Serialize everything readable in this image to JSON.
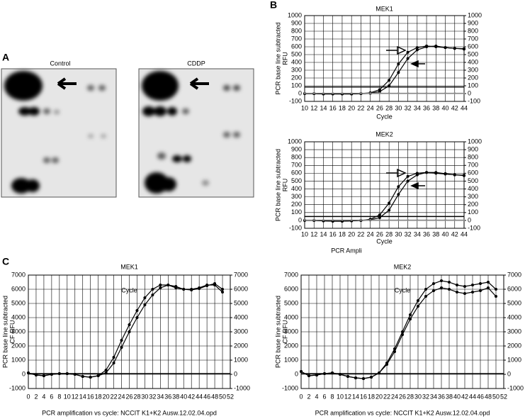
{
  "panel_labels": {
    "a": "A",
    "b": "B",
    "c": "C"
  },
  "blots": {
    "left_label": "Control",
    "right_label": "CDDP"
  },
  "caption_b": "PCR Ampli",
  "chart_data": [
    {
      "type": "line",
      "title": "MEK1",
      "xlabel": "Cycle",
      "ylabel": [
        "PCR base line subtracted",
        "RFU"
      ],
      "x": [
        10,
        12,
        14,
        16,
        18,
        20,
        22,
        24,
        26,
        28,
        30,
        32,
        34,
        36,
        38,
        40,
        42,
        44
      ],
      "xlim": [
        10,
        44
      ],
      "xticks": [
        10,
        12,
        14,
        16,
        18,
        20,
        22,
        24,
        26,
        28,
        30,
        32,
        34,
        36,
        38,
        40,
        42,
        44
      ],
      "ylim": [
        -100,
        1000
      ],
      "yticks": [
        -100,
        0,
        100,
        200,
        300,
        400,
        500,
        600,
        700,
        800,
        900,
        1000
      ],
      "y2lim": [
        -100,
        1000
      ],
      "y2ticks": [
        -100,
        0,
        100,
        200,
        300,
        400,
        500,
        600,
        700,
        800,
        900,
        1000
      ],
      "grid": true,
      "threshold": 85,
      "series": [
        {
          "color": "#000000",
          "values": [
            0,
            0,
            -5,
            -5,
            -5,
            -5,
            0,
            10,
            50,
            170,
            380,
            530,
            590,
            610,
            600,
            590,
            580,
            570
          ]
        },
        {
          "color": "#000000",
          "values": [
            0,
            0,
            -5,
            -5,
            -5,
            -5,
            0,
            5,
            25,
            100,
            270,
            450,
            560,
            600,
            610,
            590,
            580,
            575
          ]
        },
        {
          "color": "#888888",
          "values": [
            5,
            5,
            5,
            5,
            5,
            5,
            5,
            5,
            5,
            5,
            5,
            5,
            5,
            5,
            5,
            5,
            5,
            5
          ]
        }
      ]
    },
    {
      "type": "line",
      "title": "MEK2",
      "xlabel": "Cycle",
      "ylabel": [
        "PCR base line subtracted",
        "RFU"
      ],
      "x": [
        10,
        12,
        14,
        16,
        18,
        20,
        22,
        24,
        26,
        28,
        30,
        32,
        34,
        36,
        38,
        40,
        42,
        44
      ],
      "xlim": [
        10,
        44
      ],
      "xticks": [
        10,
        12,
        14,
        16,
        18,
        20,
        22,
        24,
        26,
        28,
        30,
        32,
        34,
        36,
        38,
        40,
        42,
        44
      ],
      "ylim": [
        -100,
        1000
      ],
      "yticks": [
        -100,
        0,
        100,
        200,
        300,
        400,
        500,
        600,
        700,
        800,
        900,
        1000
      ],
      "y2lim": [
        -100,
        1000
      ],
      "y2ticks": [
        -100,
        0,
        100,
        200,
        300,
        400,
        500,
        600,
        700,
        800,
        900,
        1000
      ],
      "grid": true,
      "threshold": 50,
      "series": [
        {
          "color": "#000000",
          "values": [
            0,
            0,
            -5,
            -10,
            -10,
            -5,
            0,
            15,
            70,
            220,
            430,
            560,
            600,
            610,
            600,
            590,
            580,
            570
          ]
        },
        {
          "color": "#000000",
          "values": [
            0,
            0,
            -5,
            -10,
            -10,
            -5,
            0,
            8,
            35,
            130,
            330,
            500,
            580,
            610,
            610,
            595,
            580,
            575
          ]
        },
        {
          "color": "#888888",
          "values": [
            5,
            5,
            5,
            5,
            5,
            5,
            5,
            5,
            5,
            5,
            5,
            5,
            5,
            5,
            5,
            5,
            5,
            5
          ]
        }
      ]
    },
    {
      "type": "line",
      "title": "MEK1",
      "xlabel": "Cycle",
      "ylabel": [
        "PCR base line subtracted",
        "CF RFU"
      ],
      "note": "PCR amplification vs cycle: NCCIT K1+K2 Ausw.12.02.04.opd",
      "x": [
        0,
        2,
        4,
        6,
        8,
        10,
        12,
        14,
        16,
        18,
        20,
        22,
        24,
        26,
        28,
        30,
        32,
        34,
        36,
        38,
        40,
        42,
        44,
        46,
        48,
        50
      ],
      "xlim": [
        0,
        52
      ],
      "xticks": [
        0,
        2,
        4,
        6,
        8,
        10,
        12,
        14,
        16,
        18,
        20,
        22,
        24,
        26,
        28,
        30,
        32,
        34,
        36,
        38,
        40,
        42,
        44,
        46,
        48,
        50,
        52
      ],
      "ylim": [
        -1000,
        7000
      ],
      "yticks": [
        -1000,
        0,
        1000,
        2000,
        3000,
        4000,
        5000,
        6000,
        7000
      ],
      "y2lim": [
        -1000,
        7000
      ],
      "y2ticks": [
        -1000,
        0,
        1000,
        2000,
        3000,
        4000,
        5000,
        6000,
        7000
      ],
      "grid": true,
      "threshold": 50,
      "series": [
        {
          "color": "#000000",
          "values": [
            100,
            -50,
            -100,
            0,
            50,
            50,
            0,
            -150,
            -200,
            -100,
            300,
            1200,
            2400,
            3500,
            4500,
            5400,
            6000,
            6300,
            6300,
            6100,
            6000,
            6000,
            6100,
            6300,
            6300,
            5800
          ]
        },
        {
          "color": "#000000",
          "values": [
            100,
            -50,
            -100,
            0,
            50,
            50,
            0,
            -150,
            -200,
            -100,
            100,
            800,
            1900,
            3000,
            4000,
            4900,
            5600,
            6100,
            6300,
            6200,
            6000,
            5950,
            6050,
            6250,
            6400,
            6000
          ]
        }
      ]
    },
    {
      "type": "line",
      "title": "MEK2",
      "xlabel": "Cycle",
      "ylabel": [
        "PCR base line subtracted",
        "CF RFU"
      ],
      "note": "PCR amplification vs cycle: NCCIT K1+K2 Ausw.12.02.04.opd",
      "x": [
        0,
        2,
        4,
        6,
        8,
        10,
        12,
        14,
        16,
        18,
        20,
        22,
        24,
        26,
        28,
        30,
        32,
        34,
        36,
        38,
        40,
        42,
        44,
        46,
        48,
        50
      ],
      "xlim": [
        0,
        52
      ],
      "xticks": [
        0,
        2,
        4,
        6,
        8,
        10,
        12,
        14,
        16,
        18,
        20,
        22,
        24,
        26,
        28,
        30,
        32,
        34,
        36,
        38,
        40,
        42,
        44,
        46,
        48,
        50,
        52
      ],
      "ylim": [
        -1000,
        7000
      ],
      "yticks": [
        -1000,
        0,
        1000,
        2000,
        3000,
        4000,
        5000,
        6000,
        7000
      ],
      "y2lim": [
        -1000,
        7000
      ],
      "y2ticks": [
        -1000,
        0,
        1000,
        2000,
        3000,
        4000,
        5000,
        6000,
        7000
      ],
      "grid": true,
      "threshold": 50,
      "series": [
        {
          "color": "#000000",
          "values": [
            200,
            -100,
            -50,
            50,
            100,
            0,
            -150,
            -250,
            -300,
            -200,
            100,
            800,
            1800,
            3000,
            4200,
            5200,
            6000,
            6400,
            6600,
            6500,
            6300,
            6200,
            6300,
            6400,
            6500,
            6000
          ]
        },
        {
          "color": "#000000",
          "values": [
            200,
            -100,
            -50,
            50,
            100,
            0,
            -150,
            -250,
            -300,
            -200,
            100,
            700,
            1600,
            2800,
            3900,
            4800,
            5500,
            5900,
            6100,
            6000,
            5800,
            5700,
            5800,
            5900,
            6100,
            5500
          ]
        }
      ]
    }
  ]
}
